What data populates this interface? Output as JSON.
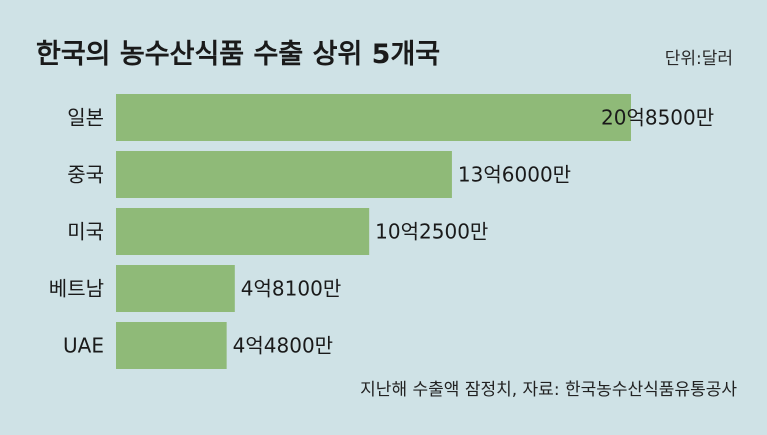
{
  "header": {
    "title": "한국의 농수산식품 수출 상위 5개국",
    "unit": "단위:달러"
  },
  "footer": {
    "source": "지난해 수출액 잠정치, 자료: 한국농수산식품유통공사"
  },
  "colors": {
    "background": "#cfe2e6",
    "bar": "#8fba78"
  },
  "chart_data": {
    "type": "bar",
    "orientation": "horizontal",
    "categories": [
      "일본",
      "중국",
      "미국",
      "베트남",
      "UAE"
    ],
    "values": [
      2085000000,
      1360000000,
      1025000000,
      481000000,
      448000000
    ],
    "value_labels": [
      "20억8500만",
      "13억6000만",
      "10억2500만",
      "4억8100만",
      "4억4800만"
    ],
    "title": "한국의 농수산식품 수출 상위 5개국",
    "unit": "단위:달러",
    "xlim": [
      0,
      2085000000
    ],
    "grid": false,
    "legend": "none"
  }
}
